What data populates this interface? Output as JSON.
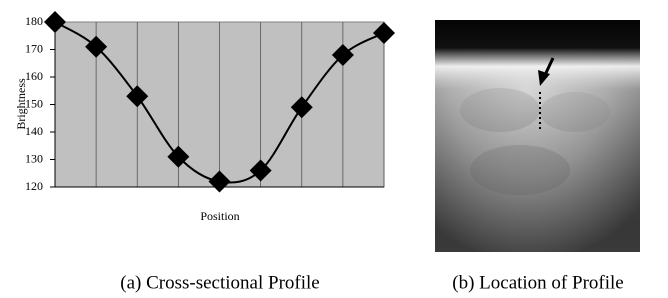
{
  "chart_data": {
    "type": "line",
    "x_label": "Position",
    "y_label": "Brightness",
    "categories": [
      null,
      null,
      null,
      null,
      null,
      null,
      null,
      null,
      null
    ],
    "values": [
      180,
      171,
      153,
      131,
      122,
      126,
      149,
      168,
      176
    ],
    "color": "#000000",
    "background": "#c0c0c0",
    "ylim": [
      120,
      180
    ],
    "yticks": [
      120,
      130,
      140,
      150,
      160,
      170,
      180
    ],
    "grid": true
  },
  "captions": [
    "(a) Cross-sectional Profile",
    "(b) Location of Profile"
  ]
}
